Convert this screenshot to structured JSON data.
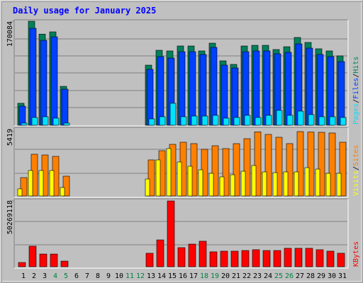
{
  "legend_separator": "/",
  "chart_data": [
    {
      "type": "bar",
      "title": "Daily usage for January 2025",
      "categories": [
        1,
        2,
        3,
        4,
        5,
        6,
        7,
        8,
        9,
        10,
        11,
        12,
        13,
        14,
        15,
        16,
        17,
        18,
        19,
        20,
        21,
        22,
        23,
        24,
        25,
        26,
        27,
        28,
        29,
        30,
        31
      ],
      "category_colors": [
        "#000000",
        "#000000",
        "#000000",
        "#008040",
        "#008040",
        "#000000",
        "#000000",
        "#000000",
        "#000000",
        "#000000",
        "#008040",
        "#008040",
        "#000000",
        "#000000",
        "#000000",
        "#000000",
        "#000000",
        "#008040",
        "#008040",
        "#000000",
        "#000000",
        "#000000",
        "#000000",
        "#000000",
        "#008040",
        "#008040",
        "#000000",
        "#000000",
        "#000000",
        "#000000",
        "#000000"
      ],
      "ylim": [
        0,
        170084
      ],
      "yticks": [
        170084
      ],
      "series": [
        {
          "name": "Hits",
          "color": "#00805c",
          "values": [
            35900,
            170084,
            149000,
            152700,
            63600,
            0,
            0,
            0,
            0,
            0,
            0,
            0,
            98300,
            122600,
            121500,
            129600,
            129600,
            121500,
            134200,
            105300,
            99500,
            129600,
            130700,
            130700,
            123800,
            128400,
            143500,
            135400,
            125000,
            121500,
            113400
          ]
        },
        {
          "name": "Files",
          "color": "#0040ff",
          "values": [
            31200,
            158500,
            138800,
            144600,
            59000,
            0,
            0,
            0,
            0,
            0,
            0,
            0,
            91400,
            112200,
            109900,
            120300,
            120300,
            115700,
            127300,
            98300,
            93700,
            120300,
            121500,
            121500,
            116900,
            119200,
            133000,
            126100,
            115700,
            112200,
            104100
          ]
        },
        {
          "name": "Pages",
          "color": "#00e0ff",
          "values": [
            3500,
            12700,
            13900,
            11600,
            3500,
            0,
            0,
            0,
            0,
            0,
            0,
            0,
            10400,
            13900,
            35900,
            13900,
            15000,
            15000,
            16200,
            11600,
            12700,
            16200,
            12700,
            16200,
            24300,
            16200,
            23100,
            17400,
            13900,
            13900,
            12700
          ]
        }
      ]
    },
    {
      "type": "bar",
      "ylim": [
        0,
        5419
      ],
      "yticks": [
        5419
      ],
      "series": [
        {
          "name": "Sites",
          "color": "#ff8000",
          "values": [
            1548,
            3513,
            3454,
            3335,
            1667,
            0,
            0,
            0,
            0,
            0,
            0,
            0,
            3037,
            3811,
            4347,
            4526,
            4407,
            3930,
            4228,
            3990,
            4407,
            4824,
            5400,
            5181,
            4943,
            4407,
            5419,
            5380,
            5360,
            5300,
            4526
          ]
        },
        {
          "name": "Visits",
          "color": "#ffff00",
          "values": [
            600,
            2144,
            2144,
            2144,
            715,
            0,
            0,
            0,
            0,
            0,
            0,
            0,
            1429,
            3037,
            3990,
            2858,
            2501,
            2203,
            1906,
            1608,
            1786,
            2084,
            2561,
            2025,
            1965,
            2025,
            2025,
            2382,
            2263,
            1906,
            1906
          ]
        }
      ]
    },
    {
      "type": "bar",
      "ylim": [
        0,
        50269118
      ],
      "yticks": [
        50269118
      ],
      "series": [
        {
          "name": "KBytes",
          "color": "#ff0000",
          "values": [
            3240000,
            15700000,
            9700000,
            9700000,
            4300000,
            0,
            0,
            0,
            0,
            0,
            0,
            0,
            10300000,
            20500000,
            50269118,
            14600000,
            17300000,
            19500000,
            11400000,
            11900000,
            11900000,
            12400000,
            13000000,
            12400000,
            12400000,
            14100000,
            14100000,
            14100000,
            13000000,
            11900000,
            10300000
          ]
        }
      ]
    }
  ]
}
